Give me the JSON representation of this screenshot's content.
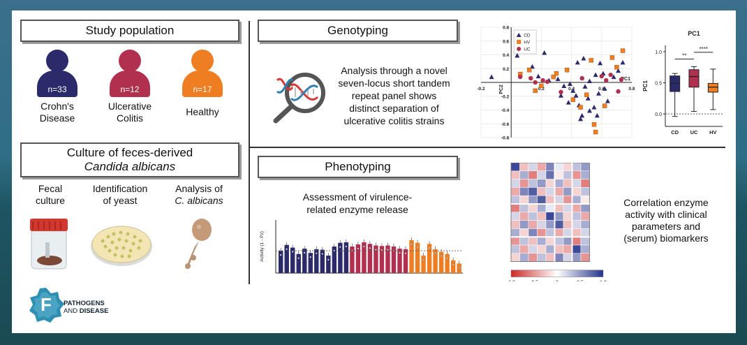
{
  "study": {
    "title": "Study population",
    "groups": [
      {
        "n": "n=33",
        "label1": "Crohn's",
        "label2": "Disease",
        "color": "#2b2a6b"
      },
      {
        "n": "n=12",
        "label1": "Ulcerative",
        "label2": "Colitis",
        "color": "#b2304f"
      },
      {
        "n": "n=17",
        "label1": "Healthy",
        "label2": "",
        "color": "#ef7d22"
      }
    ]
  },
  "culture": {
    "title1": "Culture of feces-derived",
    "title2": "Candida albicans",
    "steps": [
      {
        "l1": "Fecal",
        "l2": "culture"
      },
      {
        "l1": "Identification",
        "l2": "of yeast"
      },
      {
        "l1": "Analysis of",
        "l2": "C. albicans"
      }
    ]
  },
  "genotyping": {
    "title": "Genotyping",
    "desc": [
      "Analysis through a novel",
      "seven-locus short tandem",
      "repeat panel shows",
      "distinct separation of",
      "ulcerative colitis strains"
    ]
  },
  "phenotyping": {
    "title": "Phenotyping",
    "assess": [
      "Assessment of virulence-",
      "related enzyme release"
    ],
    "corr": [
      "Correlation enzyme",
      "activity with clinical",
      "parameters and",
      "(serum) biomarkers"
    ]
  },
  "logo": {
    "line1": "PATHOGENS",
    "line2a": "AND ",
    "line2b": "DISEASE",
    "letter": "F"
  },
  "colors": {
    "cd": "#2b2a6b",
    "uc": "#b2304f",
    "hv": "#ef7d22"
  },
  "chart_data": [
    {
      "type": "scatter",
      "xlabel": "PC1",
      "ylabel": "PC2",
      "xlim": [
        -0.2,
        0.8
      ],
      "ylim": [
        -0.8,
        0.8
      ],
      "xticks": [
        "-0.2",
        "0.2",
        "0.4",
        "0.6",
        "0.8"
      ],
      "yticks": [
        "0.8",
        "0.6",
        "0.4",
        "0.2",
        "-0.2",
        "-0.4",
        "-0.6",
        "-0.8"
      ],
      "legend": [
        "CD",
        "HV",
        "UC"
      ],
      "legend_position": "top-left",
      "grid": true,
      "series": [
        {
          "name": "CD",
          "points": [
            [
              -0.13,
              0.08
            ],
            [
              0.04,
              0.39
            ],
            [
              0.14,
              0.23
            ],
            [
              0.18,
              0.09
            ],
            [
              0.22,
              0.43
            ],
            [
              0.25,
              0.03
            ],
            [
              0.31,
              0.05
            ],
            [
              0.35,
              -0.05
            ],
            [
              0.39,
              -0.02
            ],
            [
              0.41,
              -0.12
            ],
            [
              0.43,
              -0.19
            ],
            [
              0.45,
              -0.33
            ],
            [
              0.47,
              -0.48
            ],
            [
              0.49,
              -0.06
            ],
            [
              0.51,
              -0.23
            ],
            [
              0.52,
              -0.41
            ],
            [
              0.55,
              -0.36
            ],
            [
              0.57,
              -0.48
            ],
            [
              0.59,
              0.28
            ],
            [
              0.61,
              0.13
            ],
            [
              0.64,
              -0.27
            ],
            [
              0.68,
              0.08
            ],
            [
              0.71,
              0.17
            ],
            [
              0.74,
              0.29
            ],
            [
              0.52,
              0.02
            ],
            [
              0.48,
              0.35
            ],
            [
              0.44,
              0.29
            ],
            [
              0.56,
              0.11
            ],
            [
              0.62,
              -0.09
            ],
            [
              0.38,
              -0.29
            ],
            [
              0.46,
              -0.53
            ],
            [
              0.33,
              -0.19
            ],
            [
              0.58,
              -0.16
            ]
          ]
        },
        {
          "name": "HV",
          "points": [
            [
              0.06,
              0.12
            ],
            [
              0.12,
              0.18
            ],
            [
              0.16,
              -0.12
            ],
            [
              0.2,
              -0.05
            ],
            [
              0.28,
              0.08
            ],
            [
              0.3,
              0.13
            ],
            [
              0.37,
              0.18
            ],
            [
              0.41,
              -0.25
            ],
            [
              0.46,
              -0.36
            ],
            [
              0.5,
              -0.18
            ],
            [
              0.53,
              0.32
            ],
            [
              0.55,
              -0.61
            ],
            [
              0.56,
              -0.72
            ],
            [
              0.62,
              -0.34
            ],
            [
              0.67,
              0.36
            ],
            [
              0.7,
              0.22
            ],
            [
              0.74,
              0.46
            ]
          ]
        },
        {
          "name": "UC",
          "points": [
            [
              0.06,
              0.08
            ],
            [
              0.13,
              0.06
            ],
            [
              0.16,
              0.0
            ],
            [
              0.21,
              0.03
            ],
            [
              0.24,
              0.01
            ],
            [
              0.33,
              -0.14
            ],
            [
              0.47,
              0.06
            ],
            [
              0.6,
              0.09
            ],
            [
              0.63,
              0.03
            ],
            [
              0.66,
              0.11
            ],
            [
              0.71,
              -0.13
            ],
            [
              0.73,
              0.04
            ]
          ]
        }
      ]
    },
    {
      "type": "box",
      "title": "PC1",
      "ylabel": "PC1",
      "categories": [
        "CD",
        "UC",
        "HV"
      ],
      "ylim": [
        -0.2,
        1.1
      ],
      "yticks": [
        "1.0",
        "0.5",
        "0.0"
      ],
      "significance": [
        "**",
        "****"
      ],
      "series": [
        {
          "name": "CD",
          "min": -0.04,
          "q1": 0.36,
          "median": 0.49,
          "q3": 0.61,
          "max": 0.65
        },
        {
          "name": "UC",
          "min": 0.04,
          "q1": 0.43,
          "median": 0.6,
          "q3": 0.71,
          "max": 0.76
        },
        {
          "name": "HV",
          "min": 0.07,
          "q1": 0.35,
          "median": 0.43,
          "q3": 0.49,
          "max": 0.72
        }
      ]
    },
    {
      "type": "bar",
      "ylabel": "Activity (1 - Pz)",
      "ylim": [
        0,
        1
      ],
      "reference_line": 0.42,
      "series": [
        {
          "name": "CD",
          "values": [
            0.42,
            0.53,
            0.48,
            0.36,
            0.46,
            0.38,
            0.45,
            0.44,
            0.33,
            0.5,
            0.57,
            0.58
          ]
        },
        {
          "name": "UC",
          "values": [
            0.5,
            0.54,
            0.58,
            0.55,
            0.52,
            0.51,
            0.52,
            0.5,
            0.46,
            0.45
          ]
        },
        {
          "name": "HV",
          "values": [
            0.62,
            0.57,
            0.33,
            0.55,
            0.45,
            0.4,
            0.36,
            0.24,
            0.18
          ]
        }
      ]
    },
    {
      "type": "heatmap",
      "colorbar_ticks": [
        "-1.0",
        "-0.5",
        "0",
        "0.5",
        "1.0"
      ],
      "colorbar_range": [
        -1,
        1
      ],
      "values": [
        [
          0.9,
          -0.3,
          0.2,
          -0.4,
          0.6,
          0.1,
          -0.2,
          0.3,
          0.5
        ],
        [
          -0.3,
          0.4,
          -0.6,
          0.2,
          0.7,
          -0.1,
          0.3,
          -0.5,
          0.4
        ],
        [
          0.2,
          -0.5,
          0.3,
          0.5,
          -0.2,
          0.4,
          -0.3,
          0.2,
          -0.6
        ],
        [
          -0.4,
          0.6,
          0.8,
          -0.3,
          0.2,
          -0.4,
          0.5,
          -0.2,
          0.3
        ],
        [
          0.3,
          -0.2,
          0.5,
          0.8,
          -0.3,
          0.2,
          -0.5,
          0.4,
          -0.1
        ],
        [
          -0.6,
          0.3,
          -0.2,
          0.4,
          0.1,
          -0.3,
          0.2,
          -0.4,
          0.5
        ],
        [
          0.2,
          -0.4,
          0.3,
          -0.3,
          0.9,
          0.5,
          -0.2,
          0.3,
          -0.4
        ],
        [
          -0.3,
          0.5,
          -0.4,
          0.2,
          0.5,
          0.8,
          -0.3,
          0.2,
          0.4
        ],
        [
          0.4,
          -0.2,
          0.6,
          -0.5,
          0.3,
          -0.4,
          0.2,
          -0.3,
          0.2
        ],
        [
          -0.5,
          0.3,
          -0.3,
          0.4,
          -0.2,
          0.3,
          0.5,
          -0.6,
          0.3
        ],
        [
          0.3,
          -0.4,
          0.2,
          -0.2,
          0.4,
          -0.3,
          -0.4,
          0.9,
          0.4
        ],
        [
          -0.2,
          0.4,
          -0.5,
          0.3,
          -0.3,
          0.6,
          0.2,
          0.5,
          -0.5
        ]
      ]
    }
  ]
}
